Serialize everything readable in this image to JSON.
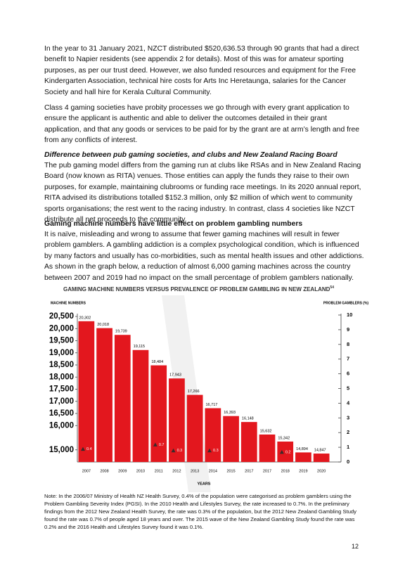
{
  "paragraphs": [
    "In the year to 31 January 2021, NZCT distributed $520,636.53 through 90 grants that had a direct benefit to Napier residents (see appendix 2 for details). Most of this was for amateur sporting purposes, as per our trust deed. However, we also funded resources and equipment for the Free Kindergarten Association, technical hire costs for Arts Inc Heretaunga, salaries for the Cancer Society and hall hire for Kerala Cultural Community.",
    "Class 4 gaming societies have probity processes we go through with every grant application to ensure the applicant is authentic and able to deliver the outcomes detailed in their grant application, and that any goods or services to be paid for by the grant are at arm’s length and free from any conflicts of interest.",
    "Difference between pub gaming societies, and clubs and New Zealand Racing Board",
    "The pub gaming model differs from the gaming run at clubs like RSAs and in New Zealand Racing Board (now known as RITA) venues. Those entities can apply the funds they raise to their own purposes, for example, maintaining clubrooms or funding race meetings. In its 2020 annual report, RITA advised its distributions totalled $152.3 million, only $2 million of which went to community sports organisations; the rest went to the racing industry. In contrast, class 4 societies like NZCT distribute all net proceeds to the community.",
    "Gaming machine numbers have little effect on problem gambling numbers",
    "It is naïve, misleading and wrong to assume that fewer gaming machines will result in fewer problem gamblers. A gambling addiction is a complex psychological condition, which is influenced by many factors and usually has co-morbidities, such as mental health issues and other addictions. As shown in the graph below, a reduction of almost 6,000 gaming machines across the country between 2007 and 2019 had no impact on the small percentage of problem gamblers nationally."
  ],
  "chart_data": {
    "type": "bar",
    "title": "GAMING MACHINE NUMBERS VERSUS PREVALENCE OF PROBLEM GAMBLING IN NEW ZEALAND",
    "title_note": "54",
    "y_label": "MACHINE NUMBERS",
    "y2_label": "PROBLEM GAMBLERS (%)",
    "x_label": "YEARS",
    "categories": [
      "2007",
      "2008",
      "2009",
      "2010",
      "2011",
      "2012",
      "2013",
      "2014",
      "2015",
      "2017",
      "2017",
      "2018",
      "2019",
      "2020"
    ],
    "series": [
      {
        "name": "Machine numbers",
        "color": "#e3171e",
        "values": [
          20302,
          20018,
          19739,
          19115,
          18484,
          17943,
          17266,
          16717,
          16393,
          16148,
          15632,
          15342,
          14894,
          14847
        ],
        "value_labels": [
          "20,302",
          "20,018",
          "19,739",
          "19,115",
          "18,484",
          "17,943",
          "17,266",
          "16,717",
          "16,393",
          "16,148",
          "15,632",
          "15,342",
          "14,894",
          "14,847"
        ]
      },
      {
        "name": "Problem gamblers",
        "color": "#3a2a2a",
        "axis": "y2",
        "values": [
          0.4,
          null,
          null,
          null,
          0.7,
          0.3,
          null,
          0.3,
          null,
          null,
          null,
          0.2,
          null,
          null
        ]
      }
    ],
    "ylim": [
      14500,
      20500
    ],
    "yticks": [
      {
        "value": 15000,
        "label": "15,000"
      },
      {
        "value": 16000,
        "label": "16,000"
      },
      {
        "value": 16500,
        "label": "16,500"
      },
      {
        "value": 17000,
        "label": "17,000"
      },
      {
        "value": 17500,
        "label": "17,500"
      },
      {
        "value": 18000,
        "label": "18,000"
      },
      {
        "value": 18500,
        "label": "18,500"
      },
      {
        "value": 19000,
        "label": "19,000"
      },
      {
        "value": 19500,
        "label": "19,500"
      },
      {
        "value": 20000,
        "label": "20,000"
      },
      {
        "value": 20500,
        "label": "20,500"
      }
    ],
    "y2lim": [
      0,
      10
    ],
    "y2ticks": [
      0,
      1,
      2,
      3,
      4,
      5,
      6,
      7,
      8,
      9,
      10
    ]
  },
  "note": "Note: In the 2006/07 Ministry of Health NZ Health Survey, 0.4% of the population were categorised as problem gamblers using the Problem Gambling Severity Index (PGSI). In the 2010 Health and Lifestyles Survey, the rate increased to 0.7%. In the preliminary findings from the 2012 New Zealand Health Survey, the rate was 0.3% of the population, but the 2012 New Zealand Gambling Study found the rate was 0.7% of people aged 18 years and over. The 2015 wave of the New Zealand Gambling Study found the rate was 0.2% and the 2016 Health and Lifestyles Survey found it was 0.1%.",
  "page_number": "12"
}
